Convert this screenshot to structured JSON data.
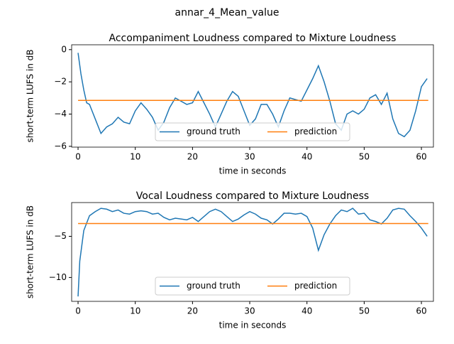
{
  "title": "annar_4_Mean_value",
  "chart_data": [
    {
      "type": "line",
      "title": "Accompaniment Loudness compared to Mixture Loudness",
      "xlabel": "time in seconds",
      "ylabel": "short-term LUFS in dB",
      "xlim": [
        -1.12,
        62.1
      ],
      "ylim": [
        -6.05,
        0.3
      ],
      "xticks": [
        0,
        10,
        20,
        30,
        40,
        50,
        60
      ],
      "yticks": [
        {
          "value": -6,
          "label": "−6"
        },
        {
          "value": -4,
          "label": "−4"
        },
        {
          "value": -2,
          "label": "−2"
        },
        0
      ],
      "legend": "lower center",
      "series": [
        {
          "name": "ground truth",
          "color": "#1f77b4",
          "x": [
            0,
            0.5,
            1,
            1.5,
            2,
            3,
            4,
            5,
            6,
            7,
            8,
            9,
            10,
            11,
            12,
            13,
            14,
            15,
            16,
            17,
            18,
            19,
            20,
            21,
            22,
            23,
            24,
            25,
            26,
            27,
            28,
            29,
            30,
            31,
            32,
            33,
            34,
            35,
            36,
            37,
            38,
            39,
            40,
            41,
            42,
            43,
            44,
            45,
            46,
            47,
            48,
            49,
            50,
            51,
            52,
            53,
            54,
            55,
            56,
            57,
            58,
            59,
            60,
            61
          ],
          "values": [
            -0.2,
            -1.5,
            -2.5,
            -3.3,
            -3.4,
            -4.3,
            -5.2,
            -4.8,
            -4.6,
            -4.2,
            -4.5,
            -4.6,
            -3.8,
            -3.3,
            -3.7,
            -4.2,
            -5.0,
            -4.5,
            -3.6,
            -3.0,
            -3.2,
            -3.4,
            -3.3,
            -2.6,
            -3.3,
            -4.0,
            -4.8,
            -4.0,
            -3.2,
            -2.6,
            -2.9,
            -3.8,
            -4.7,
            -4.3,
            -3.4,
            -3.4,
            -4.0,
            -4.8,
            -3.8,
            -3.0,
            -3.1,
            -3.2,
            -2.5,
            -1.8,
            -1.0,
            -2.0,
            -3.2,
            -4.6,
            -5.0,
            -4.0,
            -3.8,
            -4.0,
            -3.7,
            -3.0,
            -2.8,
            -3.4,
            -2.7,
            -4.3,
            -5.2,
            -5.4,
            -5.0,
            -3.8,
            -2.3,
            -1.8
          ]
        },
        {
          "name": "prediction",
          "color": "#ff7f0e",
          "x": [
            0,
            61.2
          ],
          "values": [
            -3.15,
            -3.15
          ]
        }
      ]
    },
    {
      "type": "line",
      "title": "Vocal Loudness compared to Mixture Loudness",
      "xlabel": "time in seconds",
      "ylabel": "short-term LUFS in dB",
      "xlim": [
        -1.12,
        62.1
      ],
      "ylim": [
        -12.9,
        -0.9
      ],
      "xticks": [
        0,
        10,
        20,
        30,
        40,
        50,
        60
      ],
      "yticks": [
        {
          "value": -10,
          "label": "−10"
        },
        {
          "value": -5,
          "label": "−5"
        }
      ],
      "legend": "lower center",
      "series": [
        {
          "name": "ground truth",
          "color": "#1f77b4",
          "x": [
            0,
            0.3,
            1,
            2,
            3,
            4,
            5,
            6,
            7,
            8,
            9,
            10,
            11,
            12,
            13,
            14,
            15,
            16,
            17,
            18,
            19,
            20,
            21,
            22,
            23,
            24,
            25,
            26,
            27,
            28,
            29,
            30,
            31,
            32,
            33,
            34,
            35,
            36,
            37,
            38,
            39,
            40,
            41,
            42,
            43,
            44,
            45,
            46,
            47,
            48,
            49,
            50,
            51,
            52,
            53,
            54,
            55,
            56,
            57,
            58,
            59,
            60,
            61
          ],
          "values": [
            -12.3,
            -8,
            -4.3,
            -2.5,
            -2.0,
            -1.6,
            -1.7,
            -2.0,
            -1.8,
            -2.2,
            -2.3,
            -2.0,
            -1.9,
            -2.0,
            -2.3,
            -2.2,
            -2.7,
            -3.0,
            -2.8,
            -2.9,
            -3.0,
            -2.7,
            -3.2,
            -2.6,
            -2.0,
            -1.7,
            -2.0,
            -2.6,
            -3.2,
            -2.9,
            -2.4,
            -2.0,
            -2.3,
            -2.8,
            -3.0,
            -3.5,
            -2.9,
            -2.2,
            -2.2,
            -2.3,
            -2.2,
            -2.6,
            -4.0,
            -6.7,
            -4.8,
            -3.5,
            -2.5,
            -1.8,
            -2.0,
            -1.6,
            -2.3,
            -2.2,
            -3.0,
            -3.2,
            -3.5,
            -2.8,
            -1.8,
            -1.6,
            -1.7,
            -2.5,
            -3.2,
            -4.0,
            -5.0
          ]
        },
        {
          "name": "prediction",
          "color": "#ff7f0e",
          "x": [
            0,
            61.2
          ],
          "values": [
            -3.45,
            -3.45
          ]
        }
      ]
    }
  ]
}
